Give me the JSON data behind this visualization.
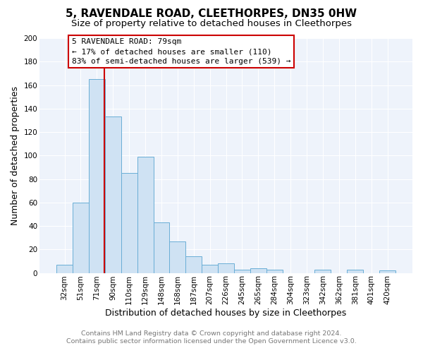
{
  "title": "5, RAVENDALE ROAD, CLEETHORPES, DN35 0HW",
  "subtitle": "Size of property relative to detached houses in Cleethorpes",
  "xlabel": "Distribution of detached houses by size in Cleethorpes",
  "ylabel": "Number of detached properties",
  "bar_labels": [
    "32sqm",
    "51sqm",
    "71sqm",
    "90sqm",
    "110sqm",
    "129sqm",
    "148sqm",
    "168sqm",
    "187sqm",
    "207sqm",
    "226sqm",
    "245sqm",
    "265sqm",
    "284sqm",
    "304sqm",
    "323sqm",
    "342sqm",
    "362sqm",
    "381sqm",
    "401sqm",
    "420sqm"
  ],
  "bar_values": [
    7,
    60,
    165,
    133,
    85,
    99,
    43,
    27,
    14,
    7,
    8,
    3,
    4,
    3,
    0,
    0,
    3,
    0,
    3,
    0,
    2
  ],
  "bar_color": "#cfe2f3",
  "bar_edge_color": "#6aaed6",
  "bar_width": 1.0,
  "ylim": [
    0,
    200
  ],
  "yticks": [
    0,
    20,
    40,
    60,
    80,
    100,
    120,
    140,
    160,
    180,
    200
  ],
  "vline_color": "#cc0000",
  "vline_x": 2.45,
  "annotation_title": "5 RAVENDALE ROAD: 79sqm",
  "annotation_line1": "← 17% of detached houses are smaller (110)",
  "annotation_line2": "83% of semi-detached houses are larger (539) →",
  "annotation_box_color": "#ffffff",
  "annotation_box_edge": "#cc0000",
  "footer1": "Contains HM Land Registry data © Crown copyright and database right 2024.",
  "footer2": "Contains public sector information licensed under the Open Government Licence v3.0.",
  "bg_color": "#ffffff",
  "plot_bg_color": "#eef3fb",
  "grid_color": "#ffffff",
  "title_fontsize": 11,
  "subtitle_fontsize": 9.5,
  "axis_label_fontsize": 9,
  "tick_fontsize": 7.5,
  "footer_fontsize": 6.8,
  "annotation_fontsize": 8.0
}
